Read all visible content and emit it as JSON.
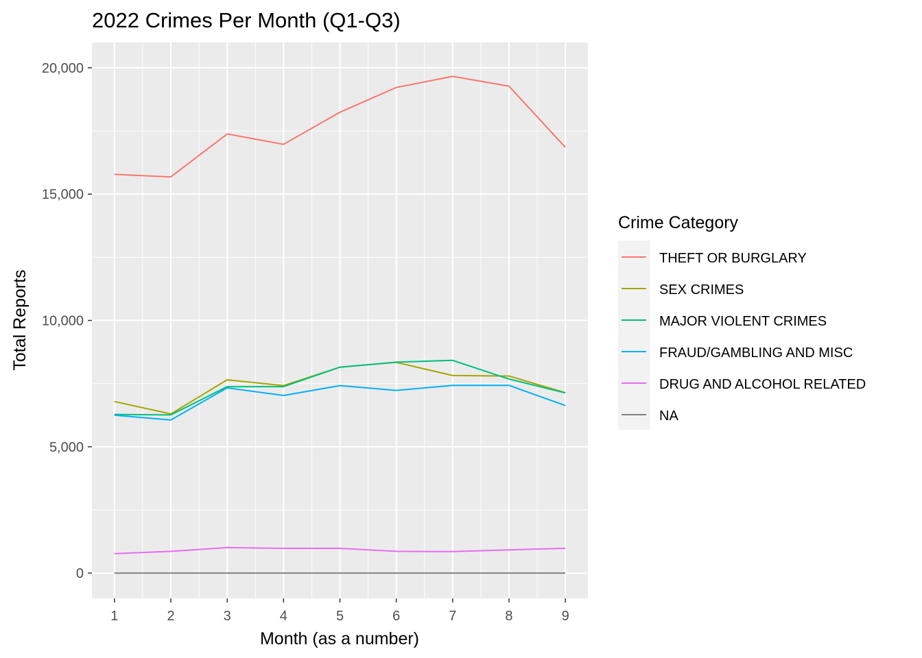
{
  "chart_data": {
    "type": "line",
    "title": "2022 Crimes Per Month (Q1-Q3)",
    "xlabel": "Month (as a number)",
    "ylabel": "Total Reports",
    "x": [
      1,
      2,
      3,
      4,
      5,
      6,
      7,
      8,
      9
    ],
    "x_ticks": [
      "1",
      "2",
      "3",
      "4",
      "5",
      "6",
      "7",
      "8",
      "9"
    ],
    "xlim": [
      0.6,
      9.4
    ],
    "ylim": [
      -1000,
      21000
    ],
    "y_ticks": [
      0,
      5000,
      10000,
      15000,
      20000
    ],
    "y_tick_labels": [
      "0",
      "5,000",
      "10,000",
      "15,000",
      "20,000"
    ],
    "grid": true,
    "legend": {
      "title": "Crime Category",
      "position": "right"
    },
    "series": [
      {
        "name": "THEFT OR BURGLARY",
        "color": "#F8766D",
        "values": [
          15780,
          15680,
          17380,
          16970,
          18240,
          19220,
          19660,
          19270,
          16850
        ]
      },
      {
        "name": "SEX CRIMES",
        "color": "#A3A500",
        "values": [
          6790,
          6300,
          7650,
          7420,
          8150,
          8340,
          7820,
          7800,
          7140
        ]
      },
      {
        "name": "MAJOR VIOLENT CRIMES",
        "color": "#00BF7D",
        "values": [
          6280,
          6260,
          7380,
          7380,
          8150,
          8350,
          8420,
          7680,
          7130
        ]
      },
      {
        "name": "FRAUD/GAMBLING AND MISC",
        "color": "#00B0F6",
        "values": [
          6250,
          6060,
          7330,
          7030,
          7420,
          7230,
          7430,
          7430,
          6630
        ]
      },
      {
        "name": "DRUG AND ALCOHOL RELATED",
        "color": "#E76BF3",
        "values": [
          770,
          860,
          1010,
          980,
          980,
          860,
          850,
          920,
          980
        ]
      },
      {
        "name": "NA",
        "color": "#808080",
        "values": [
          0,
          0,
          0,
          0,
          0,
          0,
          0,
          0,
          0
        ]
      }
    ]
  }
}
